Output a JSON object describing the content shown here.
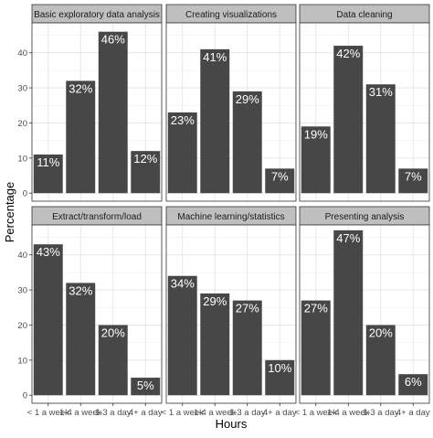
{
  "chart_data": {
    "type": "bar",
    "xlabel": "Hours",
    "ylabel": "Percentage",
    "categories": [
      "< 1 a week",
      "1-4 a week",
      "1-3 a day",
      "4+ a day"
    ],
    "ylim": [
      0,
      48
    ],
    "yticks": [
      0,
      10,
      20,
      30,
      40
    ],
    "grid": true,
    "bar_color": "#474747",
    "strip_color": "#bfbfbf",
    "label_color": "#ffffff",
    "panels": [
      {
        "title": "Basic exploratory data analysis",
        "values": [
          11,
          32,
          46,
          12
        ],
        "labels": [
          "11%",
          "32%",
          "46%",
          "12%"
        ]
      },
      {
        "title": "Creating visualizations",
        "values": [
          23,
          41,
          29,
          7
        ],
        "labels": [
          "23%",
          "41%",
          "29%",
          "7%"
        ]
      },
      {
        "title": "Data cleaning",
        "values": [
          19,
          42,
          31,
          7
        ],
        "labels": [
          "19%",
          "42%",
          "31%",
          "7%"
        ]
      },
      {
        "title": "Extract/transform/load",
        "values": [
          43,
          32,
          20,
          5
        ],
        "labels": [
          "43%",
          "32%",
          "20%",
          "5%"
        ]
      },
      {
        "title": "Machine learning/statistics",
        "values": [
          34,
          29,
          27,
          10
        ],
        "labels": [
          "34%",
          "29%",
          "27%",
          "10%"
        ]
      },
      {
        "title": "Presenting analysis",
        "values": [
          27,
          47,
          20,
          6
        ],
        "labels": [
          "27%",
          "47%",
          "20%",
          "6%"
        ]
      }
    ]
  }
}
